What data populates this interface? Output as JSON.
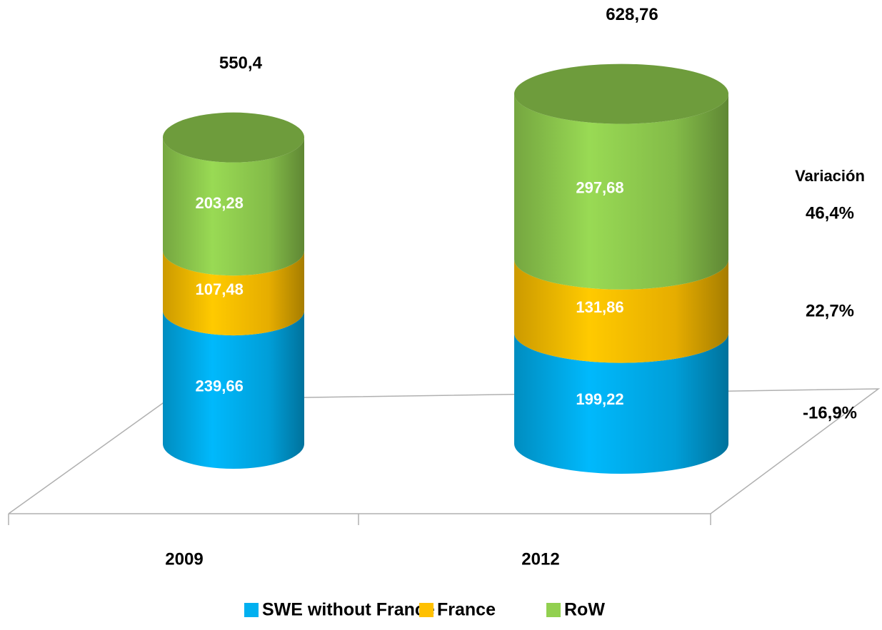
{
  "chart_data": {
    "type": "cylinder_stacked",
    "categories": [
      "2009",
      "2012"
    ],
    "series": [
      {
        "name": "SWE without France",
        "color": "#00b0f0",
        "values": [
          239.66,
          199.22
        ],
        "value_labels": [
          "239,66",
          "199,22"
        ],
        "variation": "-16,9%"
      },
      {
        "name": "France",
        "color": "#ffc000",
        "values": [
          107.48,
          131.86
        ],
        "value_labels": [
          "107,48",
          "131,86"
        ],
        "variation": "22,7%"
      },
      {
        "name": "RoW",
        "color": "#92d050",
        "values": [
          203.28,
          297.68
        ],
        "value_labels": [
          "203,28",
          "297,68"
        ],
        "variation": "46,4%"
      }
    ],
    "totals": [
      550.4,
      628.76
    ],
    "total_labels": [
      "550,4",
      "628,76"
    ],
    "variation_title": "Variación",
    "legend": "bottom"
  }
}
